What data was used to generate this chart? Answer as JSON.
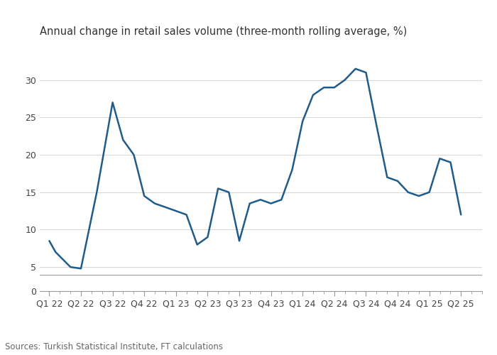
{
  "title": "Annual change in retail sales volume (three-month rolling average, %)",
  "source": "Sources: Turkish Statistical Institute, FT calculations",
  "x_labels": [
    "Q1 22",
    "Q2 22",
    "Q3 22",
    "Q4 22",
    "Q1 23",
    "Q2 23",
    "Q3 23",
    "Q4 23",
    "Q1 24",
    "Q2 24",
    "Q3 24",
    "Q4 24",
    "Q1 25",
    "Q2 25"
  ],
  "line_color": "#1f5c8b",
  "line_width": 1.8,
  "ylim_main": [
    4,
    35
  ],
  "ylim_zero": [
    0,
    35
  ],
  "yticks": [
    5,
    10,
    15,
    20,
    25,
    30
  ],
  "grid_color": "#d9d9d9",
  "background_color": "#ffffff",
  "title_fontsize": 10.5,
  "tick_fontsize": 9,
  "source_fontsize": 8.5,
  "x": [
    0,
    0.2,
    0.67,
    1.0,
    1.5,
    2.0,
    2.33,
    2.67,
    3.0,
    3.33,
    3.67,
    4.0,
    4.33,
    4.67,
    5.0,
    5.33,
    5.67,
    6.0,
    6.33,
    6.67,
    7.0,
    7.33,
    7.67,
    8.0,
    8.33,
    8.67,
    9.0,
    9.33,
    9.67,
    10.0,
    10.33,
    10.67,
    11.0,
    11.33,
    11.67,
    12.0,
    12.33,
    12.67,
    13.0
  ],
  "y": [
    8.5,
    7.0,
    5.0,
    4.8,
    15.0,
    27.0,
    22.0,
    20.0,
    14.5,
    13.5,
    13.0,
    12.5,
    12.0,
    8.0,
    9.0,
    15.5,
    15.0,
    8.5,
    13.5,
    14.0,
    13.5,
    14.0,
    18.0,
    24.5,
    28.0,
    29.0,
    29.0,
    30.0,
    31.5,
    31.0,
    24.0,
    17.0,
    16.5,
    15.0,
    14.5,
    15.0,
    19.5,
    19.0,
    12.0
  ]
}
